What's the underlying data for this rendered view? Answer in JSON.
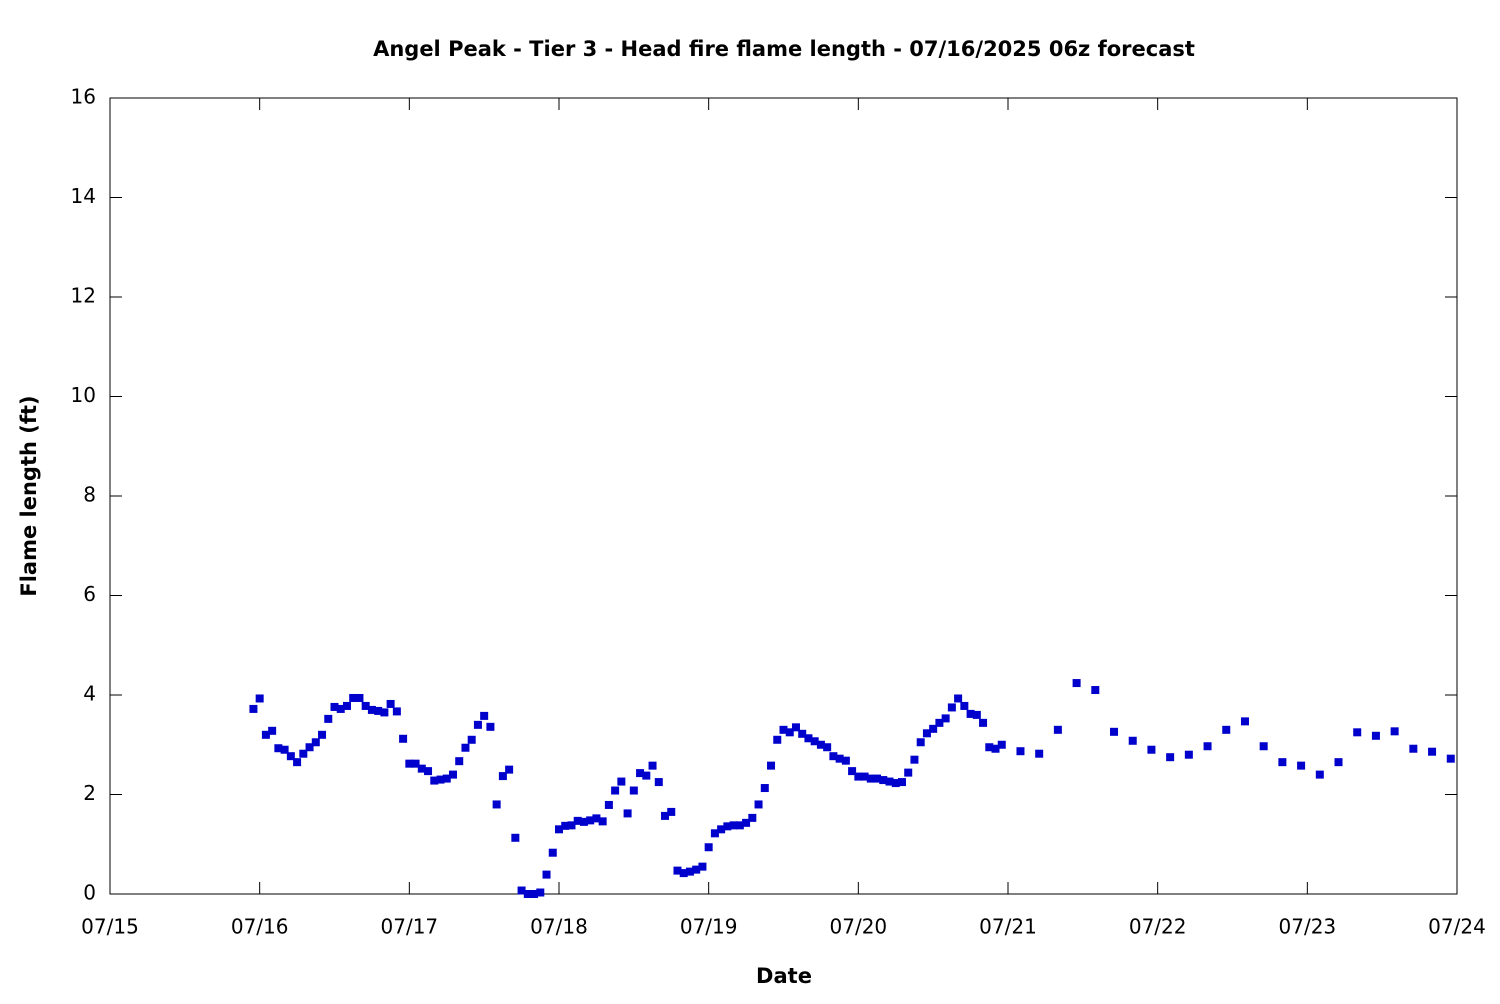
{
  "chart_data": {
    "type": "scatter",
    "title": "Angel Peak - Tier 3 - Head fire flame length - 07/16/2025 06z forecast",
    "xlabel": "Date",
    "ylabel": "Flame length (ft)",
    "color": "#0000cc",
    "x": [
      23,
      24,
      25,
      26,
      27,
      28,
      29,
      30,
      31,
      32,
      33,
      34,
      35,
      36,
      37,
      38,
      39,
      40,
      41,
      42,
      43,
      44,
      45,
      46,
      47,
      48,
      49,
      50,
      51,
      52,
      53,
      54,
      55,
      56,
      57,
      58,
      59,
      60,
      61,
      62,
      63,
      64,
      65,
      66,
      67,
      68,
      69,
      70,
      71,
      72,
      73,
      74,
      75,
      76,
      77,
      78,
      79,
      80,
      81,
      82,
      83,
      84,
      85,
      86,
      87,
      88,
      89,
      90,
      91,
      92,
      93,
      94,
      95,
      96,
      97,
      98,
      99,
      100,
      101,
      102,
      103,
      104,
      105,
      106,
      107,
      108,
      109,
      110,
      111,
      112,
      113,
      114,
      115,
      116,
      117,
      118,
      119,
      120,
      121,
      122,
      123,
      124,
      125,
      126,
      127,
      128,
      129,
      130,
      131,
      132,
      133,
      134,
      135,
      136,
      137,
      138,
      139,
      140,
      141,
      142,
      143,
      146,
      149,
      152,
      155,
      158,
      161,
      164,
      167,
      170,
      173,
      176,
      179,
      182,
      185,
      188,
      191,
      194,
      197,
      200,
      203,
      206,
      209,
      212,
      215
    ],
    "values": [
      3.72,
      3.93,
      3.2,
      3.28,
      2.93,
      2.9,
      2.77,
      2.65,
      2.82,
      2.95,
      3.05,
      3.2,
      3.52,
      3.76,
      3.72,
      3.78,
      3.94,
      3.94,
      3.78,
      3.7,
      3.68,
      3.65,
      3.82,
      3.67,
      3.12,
      2.62,
      2.62,
      2.52,
      2.47,
      2.28,
      2.3,
      2.32,
      2.4,
      2.67,
      2.94,
      3.1,
      3.4,
      3.58,
      3.36,
      1.8,
      2.37,
      2.5,
      1.13,
      0.07,
      0.0,
      0.0,
      0.03,
      0.39,
      0.83,
      1.3,
      1.37,
      1.38,
      1.47,
      1.45,
      1.48,
      1.52,
      1.46,
      1.79,
      2.08,
      2.26,
      1.62,
      2.08,
      2.43,
      2.38,
      2.58,
      2.25,
      1.57,
      1.65,
      0.47,
      0.42,
      0.45,
      0.49,
      0.55,
      0.94,
      1.22,
      1.3,
      1.36,
      1.38,
      1.38,
      1.43,
      1.53,
      1.8,
      2.13,
      2.58,
      3.1,
      3.3,
      3.25,
      3.35,
      3.22,
      3.13,
      3.07,
      3.0,
      2.95,
      2.77,
      2.72,
      2.68,
      2.47,
      2.36,
      2.36,
      2.32,
      2.32,
      2.29,
      2.26,
      2.23,
      2.25,
      2.44,
      2.7,
      3.05,
      3.23,
      3.32,
      3.44,
      3.53,
      3.75,
      3.93,
      3.78,
      3.62,
      3.6,
      3.44,
      2.95,
      2.92,
      3.0,
      2.87,
      2.82,
      3.3,
      4.24,
      4.1,
      3.26,
      3.08,
      2.9,
      2.75,
      2.8,
      2.97,
      3.3,
      3.47,
      2.97,
      2.65,
      2.58,
      2.4,
      2.65,
      3.25,
      3.18,
      3.27,
      2.92,
      2.86,
      2.72
    ],
    "xlim": [
      0,
      216
    ],
    "xticks": [
      {
        "value": 0,
        "label": "07/15"
      },
      {
        "value": 24,
        "label": "07/16"
      },
      {
        "value": 48,
        "label": "07/17"
      },
      {
        "value": 72,
        "label": "07/18"
      },
      {
        "value": 96,
        "label": "07/19"
      },
      {
        "value": 120,
        "label": "07/20"
      },
      {
        "value": 144,
        "label": "07/21"
      },
      {
        "value": 168,
        "label": "07/22"
      },
      {
        "value": 192,
        "label": "07/23"
      },
      {
        "value": 216,
        "label": "07/24"
      }
    ],
    "ylim": [
      0,
      16
    ],
    "yticks": [
      0,
      2,
      4,
      6,
      8,
      10,
      12,
      14,
      16
    ],
    "grid": false
  }
}
